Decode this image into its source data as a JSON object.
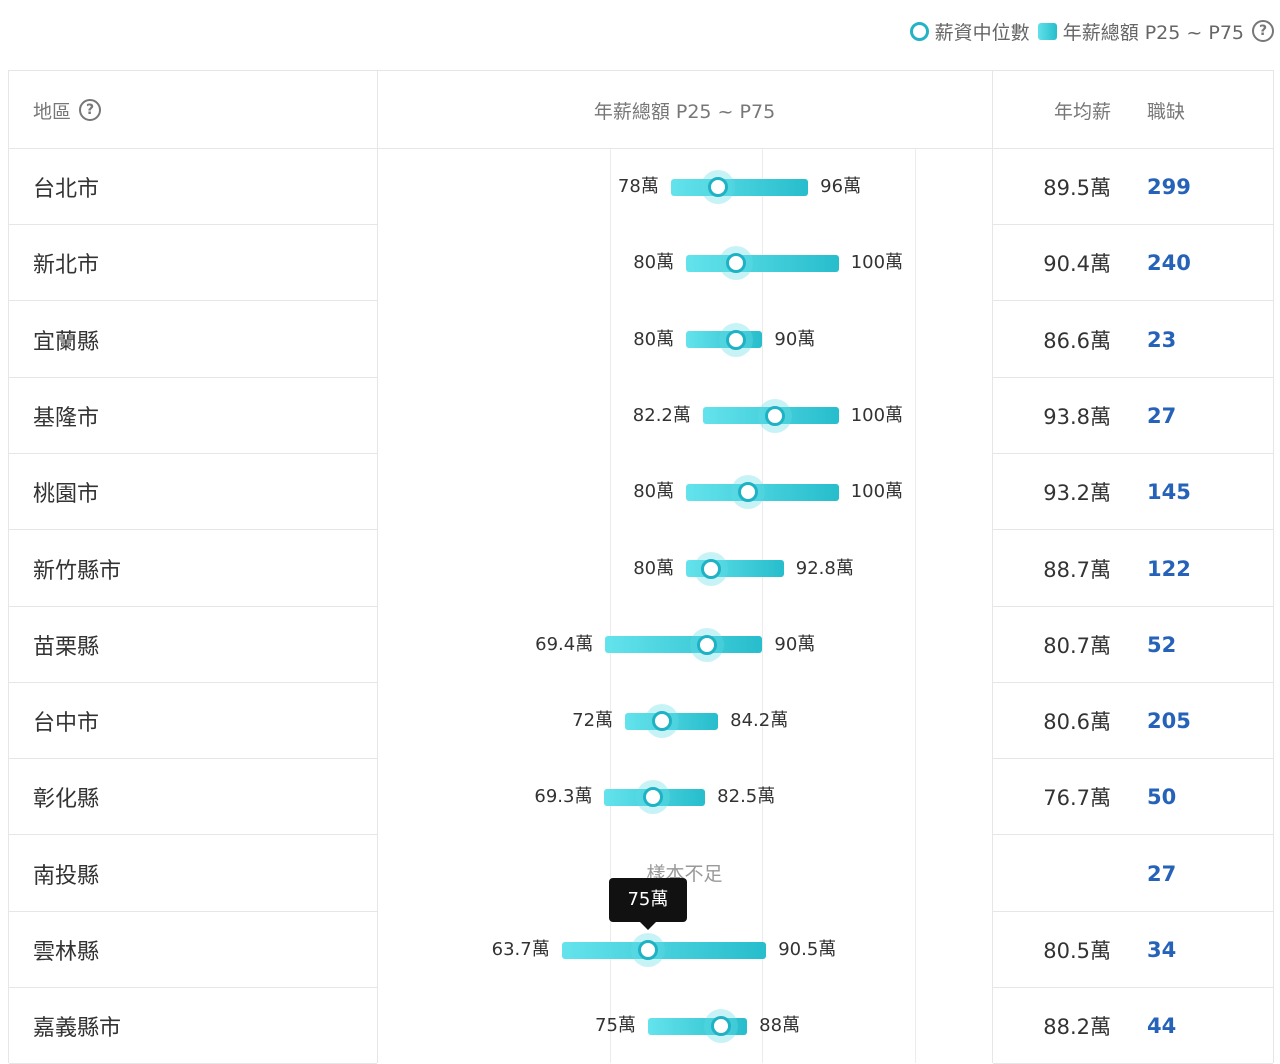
{
  "legend": {
    "median_label": "薪資中位數",
    "range_label": "年薪總額 P25 ~ P75",
    "help_icon": "question-circle-icon"
  },
  "header": {
    "region": "地區",
    "range": "年薪總額 P25 ~ P75",
    "avg": "年均薪",
    "jobs": "職缺"
  },
  "colors": {
    "bar_start": "#64e3ec",
    "bar_end": "#27bdcc",
    "median_ring": "#1fb2c4",
    "jobs_link": "#2562b8"
  },
  "tooltip": {
    "row_index": 10,
    "text": "75萬"
  },
  "insufficient_text": "樣本不足",
  "chart_data": {
    "type": "range",
    "x_unit": "萬",
    "xlim": [
      50,
      120
    ],
    "gridlines": [
      70,
      90,
      110
    ],
    "rows": [
      {
        "region": "台北市",
        "p25": 78,
        "median": 84.2,
        "p75": 96,
        "p25_label": "78萬",
        "p75_label": "96萬",
        "avg": "89.5萬",
        "jobs": "299"
      },
      {
        "region": "新北市",
        "p25": 80,
        "median": 86.6,
        "p75": 100,
        "p25_label": "80萬",
        "p75_label": "100萬",
        "avg": "90.4萬",
        "jobs": "240"
      },
      {
        "region": "宜蘭縣",
        "p25": 80,
        "median": 86.6,
        "p75": 90,
        "p25_label": "80萬",
        "p75_label": "90萬",
        "avg": "86.6萬",
        "jobs": "23"
      },
      {
        "region": "基隆市",
        "p25": 82.2,
        "median": 91.7,
        "p75": 100,
        "p25_label": "82.2萬",
        "p75_label": "100萬",
        "avg": "93.8萬",
        "jobs": "27"
      },
      {
        "region": "桃園市",
        "p25": 80,
        "median": 88.1,
        "p75": 100,
        "p25_label": "80萬",
        "p75_label": "100萬",
        "avg": "93.2萬",
        "jobs": "145"
      },
      {
        "region": "新竹縣市",
        "p25": 80,
        "median": 83.2,
        "p75": 92.8,
        "p25_label": "80萬",
        "p75_label": "92.8萬",
        "avg": "88.7萬",
        "jobs": "122"
      },
      {
        "region": "苗栗縣",
        "p25": 69.4,
        "median": 82.7,
        "p75": 90,
        "p25_label": "69.4萬",
        "p75_label": "90萬",
        "avg": "80.7萬",
        "jobs": "52"
      },
      {
        "region": "台中市",
        "p25": 72,
        "median": 76.8,
        "p75": 84.2,
        "p25_label": "72萬",
        "p75_label": "84.2萬",
        "avg": "80.6萬",
        "jobs": "205"
      },
      {
        "region": "彰化縣",
        "p25": 69.3,
        "median": 75.7,
        "p75": 82.5,
        "p25_label": "69.3萬",
        "p75_label": "82.5萬",
        "avg": "76.7萬",
        "jobs": "50"
      },
      {
        "region": "南投縣",
        "p25": null,
        "median": null,
        "p75": null,
        "p25_label": "",
        "p75_label": "",
        "avg": "",
        "jobs": "27"
      },
      {
        "region": "雲林縣",
        "p25": 63.7,
        "median": 75,
        "p75": 90.5,
        "p25_label": "63.7萬",
        "p75_label": "90.5萬",
        "avg": "80.5萬",
        "jobs": "34"
      },
      {
        "region": "嘉義縣市",
        "p25": 75,
        "median": 84.6,
        "p75": 88,
        "p25_label": "75萬",
        "p75_label": "88萬",
        "avg": "88.2萬",
        "jobs": "44"
      }
    ]
  }
}
